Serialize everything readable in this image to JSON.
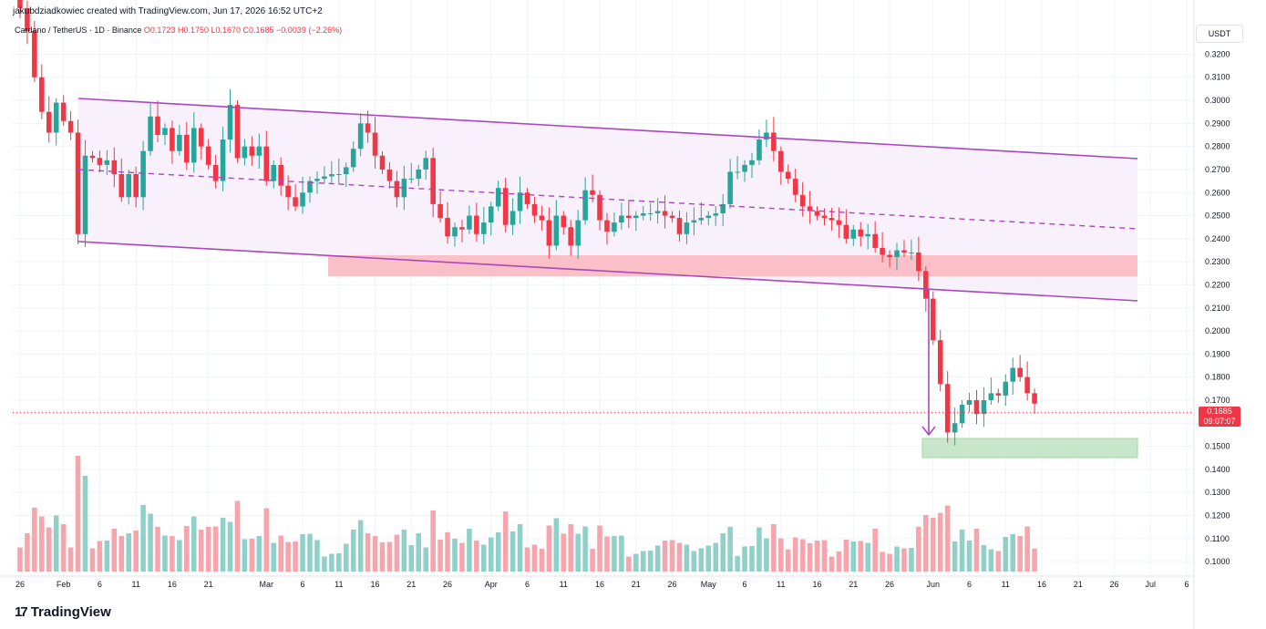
{
  "attribution": "jakubdziadkowiec created with TradingView.com, Jun 17, 2026 16:52 UTC+2",
  "legend": {
    "symbol": "Cardano / TetherUS · 1D · Binance",
    "ohlc": "O0.1723 H0.1750 L0.1670 C0.1685 −0.0039 (−2.26%)"
  },
  "currency": "USDT",
  "last_price": {
    "value": "0.1685",
    "countdown": "09:07:07"
  },
  "logo": {
    "mark": "17",
    "text": "TradingView"
  },
  "colors": {
    "up": "#26a69a",
    "down": "#f23645",
    "channel": "#ab47bc",
    "channel_fill": "#f7effa",
    "resistance_zone": "#f9b9c1",
    "support_zone": "#c8e6c9",
    "vol_up": "#8fd1c8",
    "vol_down": "#f7a5ac"
  },
  "chart_data": {
    "type": "candlestick",
    "ylim": [
      0.0945,
      0.3265
    ],
    "yticks": [
      "0.3200",
      "0.3100",
      "0.3000",
      "0.2900",
      "0.2800",
      "0.2700",
      "0.2600",
      "0.2500",
      "0.2400",
      "0.2300",
      "0.2200",
      "0.2100",
      "0.2000",
      "0.1900",
      "0.1800",
      "0.1700",
      "0.1600",
      "0.1500",
      "0.1400",
      "0.1300",
      "0.1200",
      "0.1100",
      "0.1000"
    ],
    "xlim": [
      "2026-01-25",
      "2026-07-07"
    ],
    "xticks": [
      {
        "date": "2026-01-26",
        "label": "26"
      },
      {
        "date": "2026-02-01",
        "label": "Feb"
      },
      {
        "date": "2026-02-06",
        "label": "6"
      },
      {
        "date": "2026-02-11",
        "label": "11"
      },
      {
        "date": "2026-02-16",
        "label": "16"
      },
      {
        "date": "2026-02-21",
        "label": "21"
      },
      {
        "date": "2026-03-01",
        "label": "Mar"
      },
      {
        "date": "2026-03-06",
        "label": "6"
      },
      {
        "date": "2026-03-11",
        "label": "11"
      },
      {
        "date": "2026-03-16",
        "label": "16"
      },
      {
        "date": "2026-03-21",
        "label": "21"
      },
      {
        "date": "2026-03-26",
        "label": "26"
      },
      {
        "date": "2026-04-01",
        "label": "Apr"
      },
      {
        "date": "2026-04-06",
        "label": "6"
      },
      {
        "date": "2026-04-11",
        "label": "11"
      },
      {
        "date": "2026-04-16",
        "label": "16"
      },
      {
        "date": "2026-04-21",
        "label": "21"
      },
      {
        "date": "2026-04-26",
        "label": "26"
      },
      {
        "date": "2026-05-01",
        "label": "May"
      },
      {
        "date": "2026-05-06",
        "label": "6"
      },
      {
        "date": "2026-05-11",
        "label": "11"
      },
      {
        "date": "2026-05-16",
        "label": "16"
      },
      {
        "date": "2026-05-21",
        "label": "21"
      },
      {
        "date": "2026-05-26",
        "label": "26"
      },
      {
        "date": "2026-06-01",
        "label": "Jun"
      },
      {
        "date": "2026-06-06",
        "label": "6"
      },
      {
        "date": "2026-06-11",
        "label": "11"
      },
      {
        "date": "2026-06-16",
        "label": "16"
      },
      {
        "date": "2026-06-21",
        "label": "21"
      },
      {
        "date": "2026-06-26",
        "label": "26"
      },
      {
        "date": "2026-07-01",
        "label": "Jul"
      },
      {
        "date": "2026-07-06",
        "label": "6"
      }
    ],
    "candles_close": [
      0.34,
      0.33,
      0.31,
      0.295,
      0.286,
      0.299,
      0.291,
      0.286,
      0.242,
      0.276,
      0.275,
      0.272,
      0.274,
      0.268,
      0.258,
      0.268,
      0.258,
      0.278,
      0.293,
      0.285,
      0.288,
      0.278,
      0.285,
      0.273,
      0.288,
      0.28,
      0.272,
      0.265,
      0.283,
      0.298,
      0.275,
      0.28,
      0.276,
      0.28,
      0.265,
      0.272,
      0.263,
      0.258,
      0.254,
      0.26,
      0.265,
      0.266,
      0.267,
      0.268,
      0.268,
      0.271,
      0.279,
      0.29,
      0.286,
      0.276,
      0.27,
      0.265,
      0.258,
      0.266,
      0.266,
      0.27,
      0.275,
      0.255,
      0.249,
      0.241,
      0.245,
      0.244,
      0.25,
      0.242,
      0.247,
      0.254,
      0.262,
      0.246,
      0.252,
      0.26,
      0.255,
      0.25,
      0.248,
      0.237,
      0.25,
      0.245,
      0.237,
      0.248,
      0.261,
      0.259,
      0.248,
      0.243,
      0.247,
      0.25,
      0.249,
      0.25,
      0.251,
      0.251,
      0.252,
      0.25,
      0.249,
      0.242,
      0.247,
      0.248,
      0.249,
      0.25,
      0.251,
      0.255,
      0.269,
      0.269,
      0.272,
      0.274,
      0.283,
      0.286,
      0.278,
      0.269,
      0.266,
      0.259,
      0.254,
      0.252,
      0.25,
      0.249,
      0.248,
      0.246,
      0.24,
      0.244,
      0.241,
      0.242,
      0.236,
      0.233,
      0.232,
      0.235,
      0.234,
      0.234,
      0.226,
      0.214,
      0.196,
      0.177,
      0.156,
      0.16,
      0.168,
      0.17,
      0.164,
      0.17,
      0.173,
      0.172,
      0.178,
      0.184,
      0.18,
      0.173,
      0.1685
    ]
  }
}
